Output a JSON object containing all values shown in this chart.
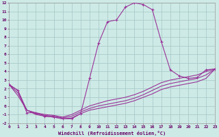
{
  "xlabel": "Windchill (Refroidissement éolien,°C)",
  "background_color": "#ceeae6",
  "grid_color": "#aaccca",
  "line_color": "#993399",
  "xlim": [
    0,
    23
  ],
  "ylim": [
    -2,
    12
  ],
  "xticks": [
    0,
    1,
    2,
    3,
    4,
    5,
    6,
    7,
    8,
    9,
    10,
    11,
    12,
    13,
    14,
    15,
    16,
    17,
    18,
    19,
    20,
    21,
    22,
    23
  ],
  "yticks": [
    -2,
    -1,
    0,
    1,
    2,
    3,
    4,
    5,
    6,
    7,
    8,
    9,
    10,
    11,
    12
  ],
  "series": [
    {
      "x": [
        0,
        1,
        2,
        3,
        4,
        5,
        6,
        7,
        8,
        9,
        10,
        11,
        12,
        13,
        14,
        15,
        16,
        17,
        18,
        19,
        20,
        21,
        22,
        23
      ],
      "y": [
        2.5,
        1.8,
        -0.8,
        -0.8,
        -1.2,
        -1.3,
        -1.5,
        -1.5,
        -0.9,
        3.2,
        7.3,
        9.8,
        10.0,
        11.5,
        12.0,
        11.8,
        11.2,
        7.5,
        4.2,
        3.5,
        3.2,
        3.3,
        4.2,
        4.3
      ],
      "marker": true
    },
    {
      "x": [
        0,
        1,
        2,
        3,
        4,
        5,
        6,
        7,
        8,
        9,
        10,
        11,
        12,
        13,
        14,
        15,
        16,
        17,
        18,
        19,
        20,
        21,
        22,
        23
      ],
      "y": [
        2.5,
        1.8,
        -0.5,
        -0.8,
        -1.0,
        -1.1,
        -1.3,
        -1.0,
        -0.5,
        0.0,
        0.3,
        0.6,
        0.8,
        1.0,
        1.3,
        1.7,
        2.2,
        2.7,
        3.0,
        3.2,
        3.4,
        3.6,
        4.0,
        4.3
      ],
      "marker": false
    },
    {
      "x": [
        0,
        1,
        2,
        3,
        4,
        5,
        6,
        7,
        8,
        9,
        10,
        11,
        12,
        13,
        14,
        15,
        16,
        17,
        18,
        19,
        20,
        21,
        22,
        23
      ],
      "y": [
        2.5,
        1.5,
        -0.5,
        -0.9,
        -1.1,
        -1.2,
        -1.4,
        -1.2,
        -0.7,
        -0.3,
        0.0,
        0.2,
        0.4,
        0.6,
        0.9,
        1.3,
        1.8,
        2.3,
        2.6,
        2.8,
        3.0,
        3.2,
        3.6,
        4.3
      ],
      "marker": false
    },
    {
      "x": [
        0,
        1,
        2,
        3,
        4,
        5,
        6,
        7,
        8,
        9,
        10,
        11,
        12,
        13,
        14,
        15,
        16,
        17,
        18,
        19,
        20,
        21,
        22,
        23
      ],
      "y": [
        2.5,
        1.2,
        -0.5,
        -1.0,
        -1.2,
        -1.3,
        -1.5,
        -1.4,
        -0.9,
        -0.5,
        -0.3,
        -0.1,
        0.1,
        0.3,
        0.6,
        1.0,
        1.4,
        1.9,
        2.2,
        2.4,
        2.6,
        2.8,
        3.2,
        4.3
      ],
      "marker": false
    }
  ]
}
